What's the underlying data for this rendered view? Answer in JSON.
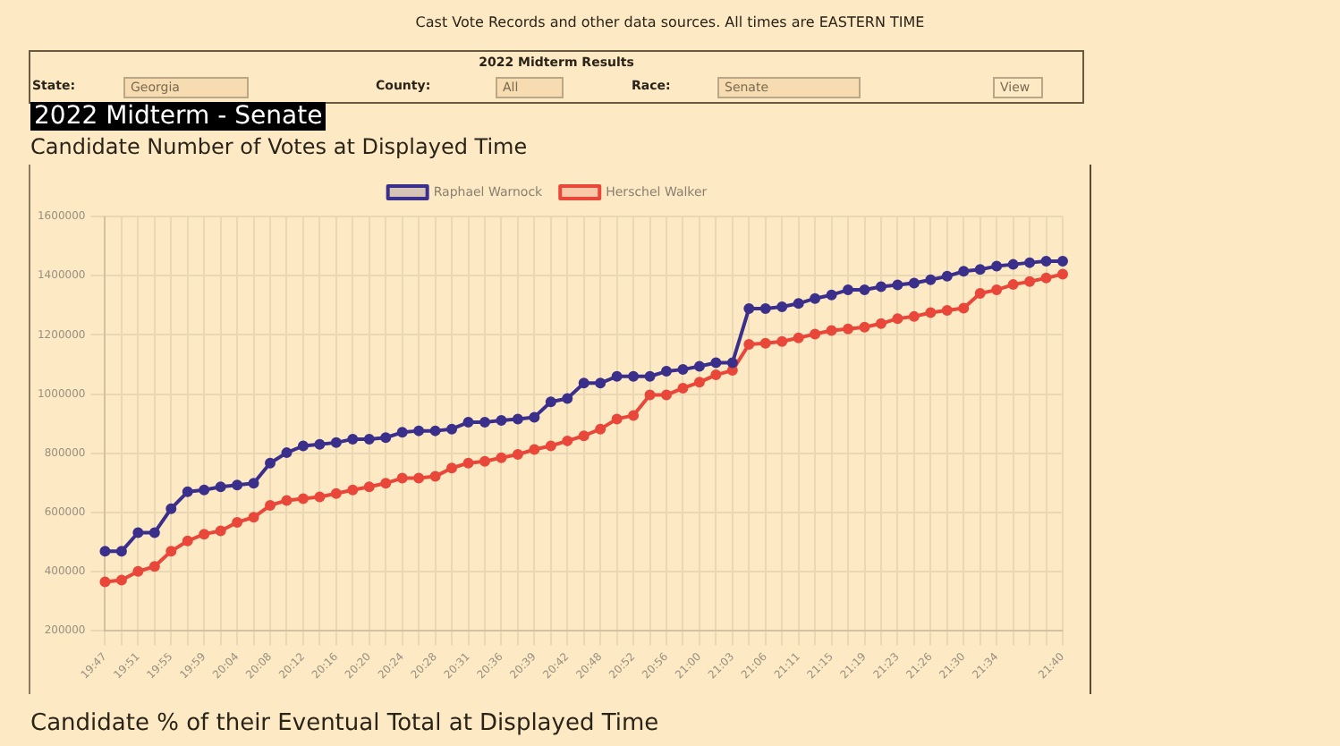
{
  "chart_data": {
    "type": "line",
    "title": "2022 Midterm - Senate",
    "subtitle": "Candidate Number of Votes at Displayed Time",
    "annotations": [
      "Cast Vote Records and other data sources. All times are EASTERN TIME",
      "2022 Midterm Results",
      "State:",
      "Georgia",
      "County:",
      "All",
      "Race:",
      "Senate",
      "View",
      "Candidate % of their Eventual Total at Displayed Time"
    ],
    "categories": [
      "19:47",
      null,
      "19:51",
      null,
      "19:55",
      null,
      "19:59",
      null,
      "20:04",
      null,
      "20:08",
      null,
      "20:12",
      null,
      "20:16",
      null,
      "20:20",
      null,
      "20:24",
      null,
      "20:28",
      null,
      "20:31",
      null,
      "20:36",
      null,
      "20:39",
      null,
      "20:42",
      null,
      "20:48",
      null,
      "20:52",
      null,
      "20:56",
      null,
      "21:00",
      null,
      "21:03",
      null,
      "21:06",
      null,
      "21:11",
      null,
      "21:15",
      null,
      "21:19",
      null,
      "21:23",
      null,
      "21:26",
      null,
      "21:30",
      null,
      "21:34",
      null,
      null,
      null,
      "21:40"
    ],
    "series": [
      {
        "name": "Raphael Warnock",
        "color": "#3b2f8c",
        "values": [
          469000,
          469000,
          532000,
          532000,
          613000,
          670000,
          676000,
          687000,
          693000,
          699000,
          767000,
          802000,
          825000,
          830000,
          836000,
          848000,
          848000,
          853000,
          871000,
          876000,
          876000,
          882000,
          905000,
          905000,
          911000,
          916000,
          922000,
          974000,
          985000,
          1037000,
          1037000,
          1060000,
          1060000,
          1060000,
          1077000,
          1083000,
          1094000,
          1106000,
          1106000,
          1289000,
          1289000,
          1295000,
          1306000,
          1323000,
          1335000,
          1352000,
          1352000,
          1363000,
          1369000,
          1375000,
          1386000,
          1398000,
          1415000,
          1421000,
          1432000,
          1438000,
          1444000,
          1449000,
          1449000
        ]
      },
      {
        "name": "Herschel Walker",
        "color": "#e8473a",
        "values": [
          366000,
          372000,
          401000,
          418000,
          469000,
          504000,
          527000,
          538000,
          567000,
          584000,
          624000,
          641000,
          647000,
          653000,
          664000,
          676000,
          687000,
          699000,
          716000,
          716000,
          722000,
          750000,
          767000,
          773000,
          785000,
          796000,
          813000,
          825000,
          842000,
          859000,
          882000,
          916000,
          928000,
          997000,
          997000,
          1020000,
          1040000,
          1065000,
          1080000,
          1168000,
          1172000,
          1178000,
          1190000,
          1203000,
          1215000,
          1220000,
          1226000,
          1238000,
          1255000,
          1262000,
          1275000,
          1283000,
          1290000,
          1340000,
          1352000,
          1370000,
          1380000,
          1392000,
          1405000
        ]
      }
    ],
    "ylim": [
      200000,
      1600000
    ],
    "yticks": [
      200000,
      400000,
      600000,
      800000,
      1000000,
      1200000,
      1400000,
      1600000
    ],
    "grid": true,
    "legend": "top",
    "marker": "circle",
    "line_style": "solid"
  }
}
